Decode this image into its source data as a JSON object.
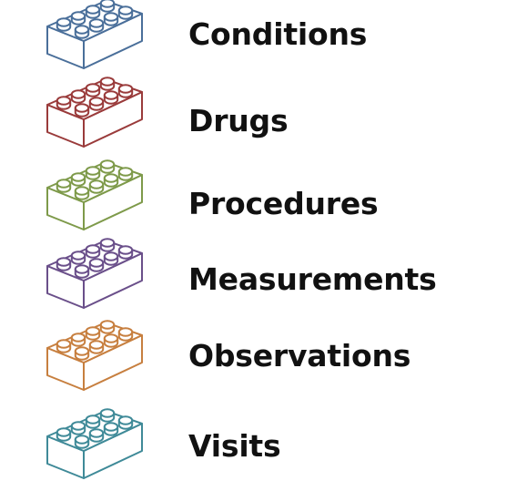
{
  "legend": {
    "items": [
      {
        "label": "Conditions",
        "color": "#4a6f9a",
        "icon": "lego-brick-icon"
      },
      {
        "label": "Drugs",
        "color": "#9a3b3b",
        "icon": "lego-brick-icon"
      },
      {
        "label": "Procedures",
        "color": "#7e9a4a",
        "icon": "lego-brick-icon"
      },
      {
        "label": "Measurements",
        "color": "#6a4f8a",
        "icon": "lego-brick-icon"
      },
      {
        "label": "Observations",
        "color": "#c77f3f",
        "icon": "lego-brick-icon"
      },
      {
        "label": "Visits",
        "color": "#3f8a98",
        "icon": "lego-brick-icon"
      }
    ]
  }
}
